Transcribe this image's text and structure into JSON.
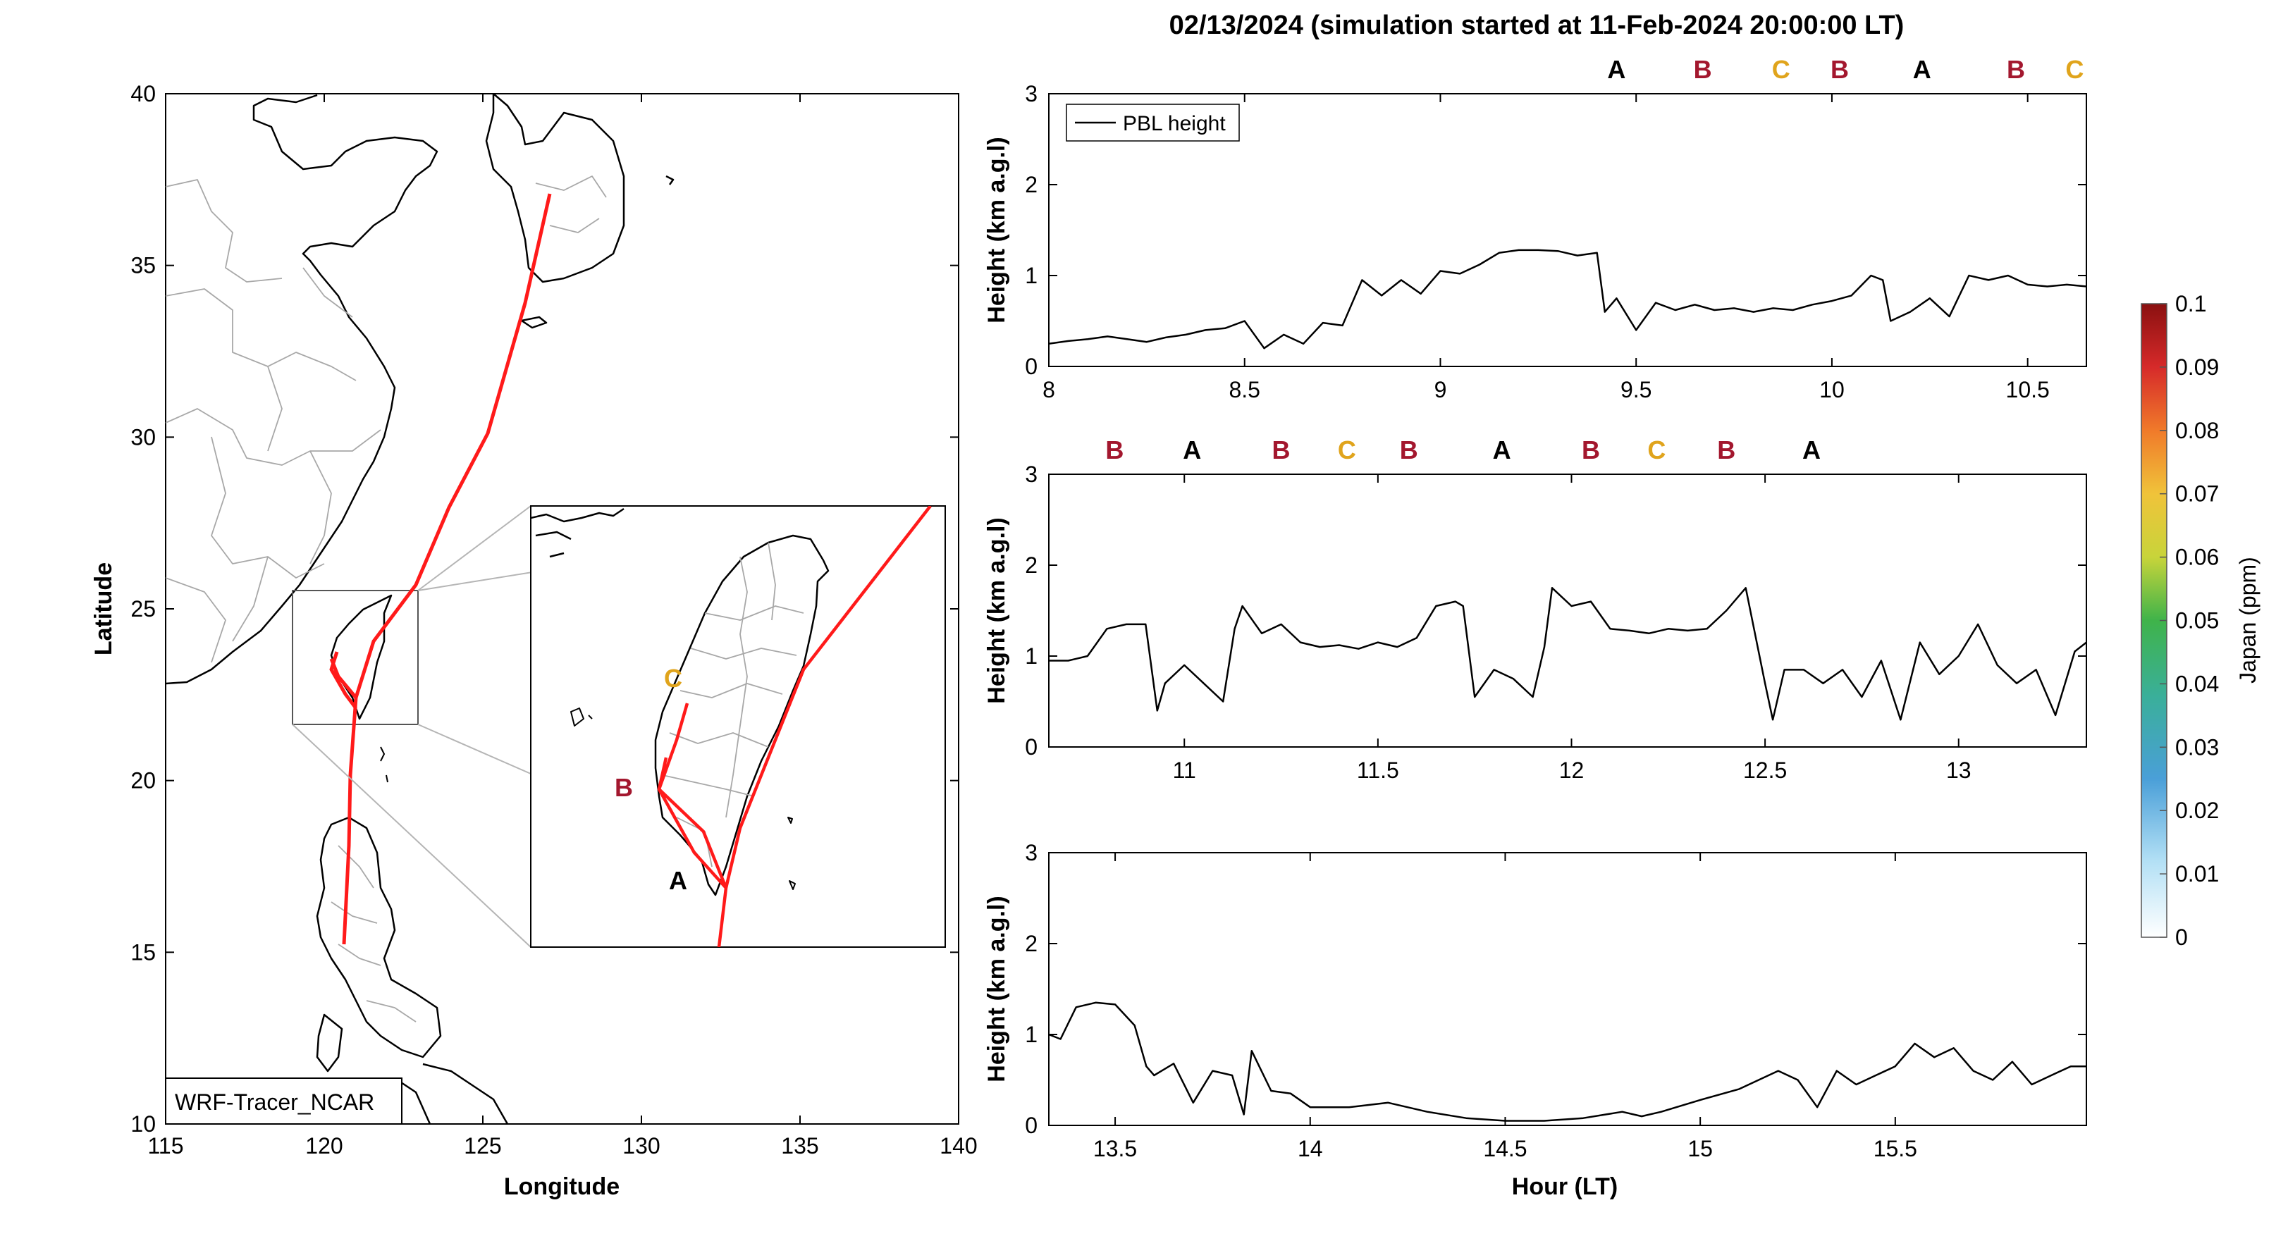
{
  "figure": {
    "title": "02/13/2024 (simulation started at 11-Feb-2024 20:00:00 LT)"
  },
  "map": {
    "xlabel": "Longitude",
    "ylabel": "Latitude",
    "xticks": [
      "115",
      "120",
      "125",
      "130",
      "135",
      "140"
    ],
    "yticks": [
      "10",
      "15",
      "20",
      "25",
      "30",
      "35",
      "40"
    ],
    "model_label": "WRF-Tracer_NCAR",
    "inset_labels": [
      {
        "text": "A",
        "color": "#000000"
      },
      {
        "text": "B",
        "color": "#a3172e"
      },
      {
        "text": "C",
        "color": "#e0a41c"
      }
    ],
    "track_color": "#ff1a1a",
    "track": [
      [
        127.0,
        37.2
      ],
      [
        126.3,
        33.6
      ],
      [
        125.1,
        30.0
      ],
      [
        123.9,
        27.9
      ],
      [
        122.9,
        25.7
      ],
      [
        121.4,
        24.0
      ],
      [
        121.0,
        22.4
      ],
      [
        120.7,
        20.5
      ],
      [
        120.7,
        18.0
      ],
      [
        120.6,
        15.2
      ]
    ],
    "xlim": [
      115,
      140
    ],
    "ylim": [
      10,
      40
    ]
  },
  "chart_data": [
    {
      "type": "line",
      "series": [
        {
          "name": "PBL height",
          "x": [
            8.0,
            8.05,
            8.1,
            8.15,
            8.2,
            8.25,
            8.3,
            8.35,
            8.4,
            8.45,
            8.5,
            8.55,
            8.6,
            8.65,
            8.7,
            8.75,
            8.8,
            8.85,
            8.9,
            8.95,
            9.0,
            9.05,
            9.1,
            9.15,
            9.2,
            9.25,
            9.3,
            9.35,
            9.4,
            9.42,
            9.45,
            9.5,
            9.55,
            9.6,
            9.65,
            9.7,
            9.75,
            9.8,
            9.85,
            9.9,
            9.95,
            10.0,
            10.05,
            10.1,
            10.13,
            10.15,
            10.2,
            10.25,
            10.3,
            10.35,
            10.4,
            10.45,
            10.5,
            10.55,
            10.6,
            10.65
          ],
          "values": [
            0.25,
            0.28,
            0.3,
            0.33,
            0.3,
            0.27,
            0.32,
            0.35,
            0.4,
            0.42,
            0.5,
            0.2,
            0.35,
            0.25,
            0.48,
            0.45,
            0.95,
            0.78,
            0.95,
            0.8,
            1.05,
            1.02,
            1.12,
            1.25,
            1.28,
            1.28,
            1.27,
            1.22,
            1.25,
            0.6,
            0.75,
            0.4,
            0.7,
            0.62,
            0.68,
            0.62,
            0.64,
            0.6,
            0.64,
            0.62,
            0.68,
            0.72,
            0.78,
            1.0,
            0.95,
            0.5,
            0.6,
            0.75,
            0.55,
            1.0,
            0.95,
            1.0,
            0.9,
            0.88,
            0.9,
            0.88
          ]
        }
      ],
      "xlim": [
        8.0,
        10.65
      ],
      "ylim": [
        0,
        3
      ],
      "xticks": [
        "8",
        "8.5",
        "9",
        "9.5",
        "10",
        "10.5"
      ],
      "yticks": [
        "0",
        "1",
        "2",
        "3"
      ],
      "ylabel": "Height (km a.g.l)",
      "legend": "top-left",
      "markers": [
        {
          "x": 9.45,
          "label": "A",
          "color": "#000000"
        },
        {
          "x": 9.67,
          "label": "B",
          "color": "#a3172e"
        },
        {
          "x": 9.87,
          "label": "C",
          "color": "#e0a41c"
        },
        {
          "x": 10.02,
          "label": "B",
          "color": "#a3172e"
        },
        {
          "x": 10.23,
          "label": "A",
          "color": "#000000"
        },
        {
          "x": 10.47,
          "label": "B",
          "color": "#a3172e"
        },
        {
          "x": 10.62,
          "label": "C",
          "color": "#e0a41c"
        }
      ]
    },
    {
      "type": "line",
      "series": [
        {
          "name": "PBL height",
          "x": [
            10.65,
            10.7,
            10.75,
            10.8,
            10.85,
            10.9,
            10.93,
            10.95,
            11.0,
            11.05,
            11.1,
            11.13,
            11.15,
            11.2,
            11.25,
            11.3,
            11.35,
            11.4,
            11.45,
            11.5,
            11.55,
            11.6,
            11.65,
            11.7,
            11.72,
            11.75,
            11.8,
            11.85,
            11.9,
            11.93,
            11.95,
            12.0,
            12.05,
            12.1,
            12.15,
            12.2,
            12.25,
            12.3,
            12.35,
            12.4,
            12.45,
            12.5,
            12.52,
            12.55,
            12.6,
            12.65,
            12.7,
            12.75,
            12.8,
            12.85,
            12.9,
            12.95,
            13.0,
            13.05,
            13.1,
            13.15,
            13.2,
            13.25,
            13.3,
            13.33
          ],
          "values": [
            0.95,
            0.95,
            1.0,
            1.3,
            1.35,
            1.35,
            0.4,
            0.7,
            0.9,
            0.7,
            0.5,
            1.3,
            1.55,
            1.25,
            1.35,
            1.15,
            1.1,
            1.12,
            1.08,
            1.15,
            1.1,
            1.2,
            1.55,
            1.6,
            1.55,
            0.55,
            0.85,
            0.75,
            0.55,
            1.1,
            1.75,
            1.55,
            1.6,
            1.3,
            1.28,
            1.25,
            1.3,
            1.28,
            1.3,
            1.5,
            1.75,
            0.7,
            0.3,
            0.85,
            0.85,
            0.7,
            0.85,
            0.55,
            0.95,
            0.3,
            1.15,
            0.8,
            1.0,
            1.35,
            0.9,
            0.7,
            0.85,
            0.35,
            1.05,
            1.15
          ]
        }
      ],
      "xlim": [
        10.65,
        13.33
      ],
      "ylim": [
        0,
        3
      ],
      "xticks": [
        "11",
        "11.5",
        "12",
        "12.5",
        "13"
      ],
      "yticks": [
        "0",
        "1",
        "2",
        "3"
      ],
      "ylabel": "Height (km a.g.l)",
      "markers": [
        {
          "x": 10.82,
          "label": "B",
          "color": "#a3172e"
        },
        {
          "x": 11.02,
          "label": "A",
          "color": "#000000"
        },
        {
          "x": 11.25,
          "label": "B",
          "color": "#a3172e"
        },
        {
          "x": 11.42,
          "label": "C",
          "color": "#e0a41c"
        },
        {
          "x": 11.58,
          "label": "B",
          "color": "#a3172e"
        },
        {
          "x": 11.82,
          "label": "A",
          "color": "#000000"
        },
        {
          "x": 12.05,
          "label": "B",
          "color": "#a3172e"
        },
        {
          "x": 12.22,
          "label": "C",
          "color": "#e0a41c"
        },
        {
          "x": 12.4,
          "label": "B",
          "color": "#a3172e"
        },
        {
          "x": 12.62,
          "label": "A",
          "color": "#000000"
        }
      ]
    },
    {
      "type": "line",
      "series": [
        {
          "name": "PBL height",
          "x": [
            13.33,
            13.36,
            13.4,
            13.45,
            13.5,
            13.55,
            13.58,
            13.6,
            13.65,
            13.7,
            13.75,
            13.8,
            13.83,
            13.85,
            13.9,
            13.95,
            14.0,
            14.1,
            14.2,
            14.3,
            14.4,
            14.5,
            14.6,
            14.7,
            14.8,
            14.85,
            14.9,
            15.0,
            15.1,
            15.2,
            15.25,
            15.3,
            15.35,
            15.4,
            15.45,
            15.5,
            15.55,
            15.6,
            15.65,
            15.7,
            15.75,
            15.8,
            15.85,
            15.9,
            15.95,
            15.99
          ],
          "values": [
            1.0,
            0.95,
            1.3,
            1.35,
            1.33,
            1.1,
            0.65,
            0.55,
            0.68,
            0.25,
            0.6,
            0.55,
            0.12,
            0.82,
            0.38,
            0.35,
            0.2,
            0.2,
            0.25,
            0.15,
            0.08,
            0.05,
            0.05,
            0.08,
            0.15,
            0.1,
            0.15,
            0.28,
            0.4,
            0.6,
            0.5,
            0.2,
            0.6,
            0.45,
            0.55,
            0.65,
            0.9,
            0.75,
            0.85,
            0.6,
            0.5,
            0.7,
            0.45,
            0.55,
            0.65,
            0.65
          ]
        }
      ],
      "xlim": [
        13.33,
        15.99
      ],
      "ylim": [
        0,
        3
      ],
      "xticks": [
        "13.5",
        "14",
        "14.5",
        "15",
        "15.5"
      ],
      "yticks": [
        "0",
        "1",
        "2",
        "3"
      ],
      "xlabel": "Hour (LT)",
      "ylabel": "Height (km a.g.l)"
    }
  ],
  "colorbar": {
    "label": "Japan (ppm)",
    "ticks": [
      "0",
      "0.01",
      "0.02",
      "0.03",
      "0.04",
      "0.05",
      "0.06",
      "0.07",
      "0.08",
      "0.09",
      "0.1"
    ]
  }
}
